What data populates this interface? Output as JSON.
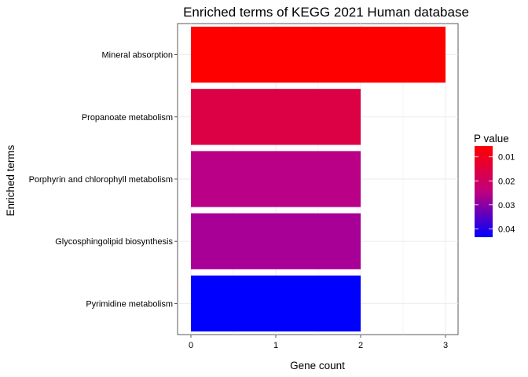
{
  "chart_data": {
    "type": "bar",
    "orientation": "horizontal",
    "title": "Enriched terms of KEGG 2021 Human database",
    "xlabel": "Gene count",
    "ylabel": "Enriched terms",
    "xlim": [
      -0.1,
      3.15
    ],
    "xticks": [
      "0",
      "1",
      "2",
      "3"
    ],
    "grid": true,
    "categories": [
      "Mineral absorption",
      "Propanoate metabolism",
      "Porphyrin and chlorophyll metabolism",
      "Glycosphingolipid biosynthesis",
      "Pyrimidine metabolism"
    ],
    "values": [
      3,
      2,
      2,
      2,
      2
    ],
    "bar_colors": [
      "#FF0000",
      "#DC0045",
      "#B90087",
      "#A80096",
      "#0000FF"
    ],
    "legend": {
      "title": "P value",
      "placement": "right",
      "labels": [
        "0.01",
        "0.02",
        "0.03",
        "0.04"
      ],
      "color_low": "#FF0000",
      "color_high": "#0000FF"
    }
  }
}
